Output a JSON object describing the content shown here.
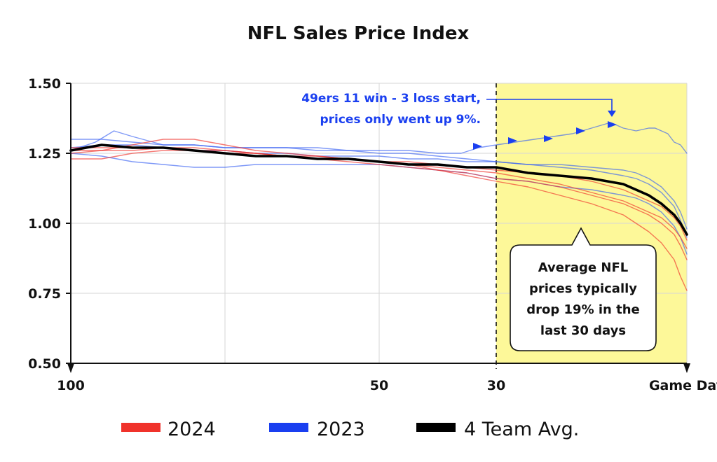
{
  "chart_data": {
    "type": "line",
    "title": "NFL Sales Price Index",
    "xlabel": "",
    "ylabel": "",
    "x_ticks": [
      {
        "value": 100,
        "label": "100"
      },
      {
        "value": 50,
        "label": "50"
      },
      {
        "value": 30,
        "label": "30"
      },
      {
        "value": 0,
        "label": "Game Day"
      }
    ],
    "y_ticks": [
      {
        "value": 1.5,
        "label": "1.50"
      },
      {
        "value": 1.25,
        "label": "1.25"
      },
      {
        "value": 1.0,
        "label": "1.00"
      },
      {
        "value": 0.75,
        "label": "0.75"
      },
      {
        "value": 0.5,
        "label": "0.50"
      }
    ],
    "xlim": [
      100,
      0
    ],
    "ylim": [
      0.5,
      1.5
    ],
    "grid": true,
    "legend_position": "bottom",
    "highlight_region": {
      "from": 30,
      "to": 0
    },
    "series": [
      {
        "name": "",
        "group": "2023",
        "color": "#3a63f3",
        "x": [
          100,
          95,
          90,
          85,
          80,
          75,
          70,
          65,
          60,
          55,
          50,
          45,
          40,
          35,
          30,
          25,
          20,
          15,
          10,
          8,
          6,
          4,
          2,
          1,
          0
        ],
        "y": [
          1.27,
          1.28,
          1.28,
          1.27,
          1.26,
          1.26,
          1.25,
          1.25,
          1.24,
          1.24,
          1.24,
          1.23,
          1.23,
          1.22,
          1.22,
          1.21,
          1.21,
          1.2,
          1.19,
          1.18,
          1.16,
          1.13,
          1.08,
          1.04,
          0.98
        ]
      },
      {
        "name": "",
        "group": "2023",
        "color": "#3a63f3",
        "x": [
          100,
          95,
          90,
          85,
          80,
          75,
          70,
          65,
          60,
          55,
          50,
          45,
          40,
          35,
          30,
          25,
          20,
          15,
          10,
          8,
          6,
          4,
          2,
          1,
          0
        ],
        "y": [
          1.3,
          1.3,
          1.29,
          1.28,
          1.28,
          1.27,
          1.27,
          1.27,
          1.27,
          1.26,
          1.25,
          1.25,
          1.24,
          1.23,
          1.22,
          1.21,
          1.2,
          1.19,
          1.17,
          1.16,
          1.14,
          1.11,
          1.06,
          1.01,
          0.95
        ]
      },
      {
        "name": "",
        "group": "2023",
        "color": "#3a63f3",
        "x": [
          100,
          95,
          90,
          85,
          80,
          75,
          70,
          65,
          60,
          55,
          50,
          45,
          40,
          35,
          30,
          25,
          20,
          15,
          10,
          8,
          6,
          4,
          2,
          1,
          0
        ],
        "y": [
          1.25,
          1.24,
          1.22,
          1.21,
          1.2,
          1.2,
          1.21,
          1.21,
          1.21,
          1.21,
          1.21,
          1.2,
          1.19,
          1.18,
          1.16,
          1.15,
          1.13,
          1.12,
          1.1,
          1.09,
          1.07,
          1.04,
          0.99,
          0.95,
          0.89
        ]
      },
      {
        "name": "",
        "group": "2023",
        "color": "#3a63f3",
        "x": [
          100,
          96,
          93,
          90,
          85,
          80,
          75,
          70,
          65,
          60,
          55,
          50,
          45,
          40,
          36,
          33,
          30,
          27,
          24,
          21,
          18,
          15,
          12,
          10,
          8,
          6,
          5,
          3,
          2,
          1,
          0
        ],
        "y": [
          1.26,
          1.29,
          1.33,
          1.31,
          1.28,
          1.28,
          1.27,
          1.27,
          1.27,
          1.26,
          1.26,
          1.26,
          1.26,
          1.25,
          1.25,
          1.27,
          1.28,
          1.29,
          1.3,
          1.31,
          1.32,
          1.34,
          1.36,
          1.34,
          1.33,
          1.34,
          1.34,
          1.32,
          1.29,
          1.28,
          1.25
        ]
      },
      {
        "name": "",
        "group": "2024",
        "color": "#f0322b",
        "x": [
          100,
          95,
          90,
          85,
          80,
          75,
          70,
          65,
          60,
          55,
          50,
          45,
          40,
          35,
          30,
          25,
          20,
          15,
          10,
          8,
          6,
          4,
          2,
          1,
          0
        ],
        "y": [
          1.25,
          1.26,
          1.28,
          1.3,
          1.3,
          1.28,
          1.26,
          1.25,
          1.24,
          1.23,
          1.22,
          1.21,
          1.19,
          1.17,
          1.15,
          1.13,
          1.1,
          1.07,
          1.03,
          1.0,
          0.97,
          0.93,
          0.87,
          0.81,
          0.76
        ]
      },
      {
        "name": "",
        "group": "2024",
        "color": "#f0322b",
        "x": [
          100,
          95,
          90,
          85,
          80,
          75,
          70,
          65,
          60,
          55,
          50,
          45,
          40,
          35,
          30,
          25,
          20,
          15,
          10,
          8,
          6,
          4,
          2,
          1,
          0
        ],
        "y": [
          1.27,
          1.27,
          1.27,
          1.27,
          1.26,
          1.25,
          1.25,
          1.24,
          1.23,
          1.22,
          1.21,
          1.2,
          1.19,
          1.18,
          1.16,
          1.15,
          1.13,
          1.1,
          1.07,
          1.05,
          1.03,
          1.0,
          0.96,
          0.92,
          0.87
        ]
      },
      {
        "name": "",
        "group": "2024",
        "color": "#f0322b",
        "x": [
          100,
          95,
          90,
          85,
          80,
          75,
          70,
          65,
          60,
          55,
          50,
          45,
          40,
          35,
          30,
          25,
          20,
          15,
          10,
          8,
          6,
          4,
          2,
          1,
          0
        ],
        "y": [
          1.23,
          1.23,
          1.25,
          1.26,
          1.26,
          1.26,
          1.25,
          1.24,
          1.24,
          1.23,
          1.22,
          1.21,
          1.2,
          1.19,
          1.18,
          1.16,
          1.14,
          1.11,
          1.08,
          1.06,
          1.04,
          1.02,
          0.98,
          0.95,
          0.91
        ]
      },
      {
        "name": "",
        "group": "2024",
        "color": "#f0322b",
        "x": [
          100,
          95,
          90,
          85,
          80,
          75,
          70,
          65,
          60,
          55,
          50,
          45,
          40,
          35,
          30,
          25,
          20,
          15,
          10,
          8,
          6,
          4,
          2,
          1,
          0
        ],
        "y": [
          1.26,
          1.26,
          1.26,
          1.27,
          1.27,
          1.26,
          1.25,
          1.24,
          1.23,
          1.23,
          1.22,
          1.22,
          1.21,
          1.2,
          1.19,
          1.18,
          1.17,
          1.15,
          1.12,
          1.1,
          1.08,
          1.06,
          1.02,
          0.99,
          0.94
        ]
      },
      {
        "name": "",
        "group": "4 Team Avg.",
        "color": "#000000",
        "x": [
          100,
          95,
          90,
          85,
          80,
          75,
          70,
          65,
          60,
          55,
          50,
          45,
          40,
          35,
          30,
          25,
          20,
          15,
          10,
          8,
          6,
          4,
          2,
          1,
          0
        ],
        "y": [
          1.26,
          1.28,
          1.27,
          1.27,
          1.26,
          1.25,
          1.24,
          1.24,
          1.23,
          1.23,
          1.22,
          1.21,
          1.21,
          1.2,
          1.2,
          1.18,
          1.17,
          1.16,
          1.14,
          1.12,
          1.1,
          1.07,
          1.03,
          1.0,
          0.96
        ]
      }
    ],
    "legend": [
      {
        "label": "2024",
        "color": "#f0322b"
      },
      {
        "label": "2023",
        "color": "#1a3ff0"
      },
      {
        "label": "4 Team Avg.",
        "color": "#000000"
      }
    ],
    "annotations": [
      {
        "lines": [
          "49ers 11 win - 3 loss start,",
          "prices only went up 9%."
        ],
        "color": "#1a3ff0"
      },
      {
        "lines": [
          "Average NFL",
          "prices typically",
          "drop 19% in the",
          "last 30 days"
        ],
        "color": "#111111"
      }
    ]
  }
}
